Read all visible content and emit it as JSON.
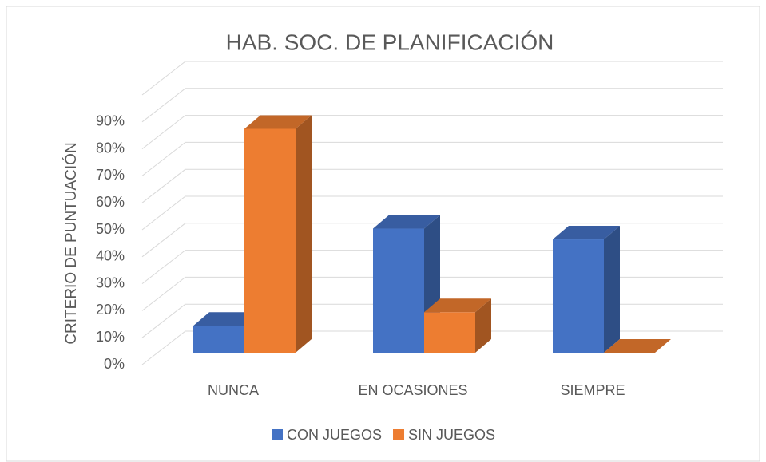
{
  "chart_data": {
    "type": "bar3d",
    "title": "HAB. SOC. DE PLANIFICACIÓN",
    "y_label": "CRITERIO DE PUNTUACIÓN",
    "categories": [
      "NUNCA",
      "EN OCASIONES",
      "SIEMPRE"
    ],
    "series": [
      {
        "name": "CON JUEGOS",
        "color": "#4472c4",
        "values": [
          10,
          46,
          42
        ]
      },
      {
        "name": "SIN JUEGOS",
        "color": "#ed7d31",
        "values": [
          83,
          15,
          0
        ]
      }
    ],
    "ylim": [
      0,
      100
    ],
    "yticks": [
      {
        "value": 0,
        "label": "0%"
      },
      {
        "value": 10,
        "label": "10%"
      },
      {
        "value": 20,
        "label": "20%"
      },
      {
        "value": 30,
        "label": "30%"
      },
      {
        "value": 40,
        "label": "40%"
      },
      {
        "value": 50,
        "label": "50%"
      },
      {
        "value": 60,
        "label": "60%"
      },
      {
        "value": 70,
        "label": "70%"
      },
      {
        "value": 80,
        "label": "80%"
      },
      {
        "value": 90,
        "label": "90%"
      }
    ],
    "grid": true,
    "legend": "bottom"
  }
}
